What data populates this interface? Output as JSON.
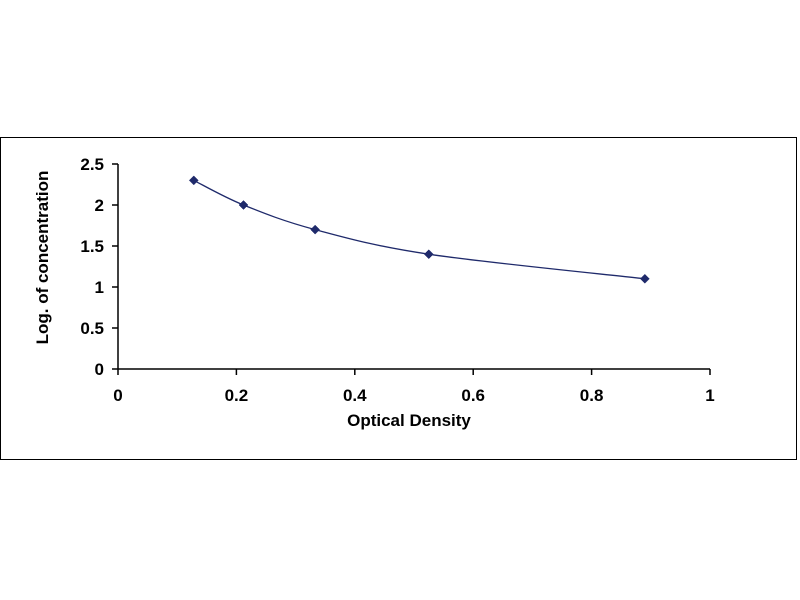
{
  "chart_data": {
    "type": "scatter",
    "title": "",
    "xlabel": "Optical Density",
    "ylabel": "Log. of concentration",
    "xlim": [
      0,
      1
    ],
    "ylim": [
      0,
      2.5
    ],
    "xticks": [
      "0",
      "0.2",
      "0.4",
      "0.6",
      "0.8",
      "1"
    ],
    "xtick_values": [
      0,
      0.2,
      0.4,
      0.6,
      0.8,
      1
    ],
    "yticks": [
      "0",
      "0.5",
      "1",
      "1.5",
      "2",
      "2.5"
    ],
    "ytick_values": [
      0,
      0.5,
      1,
      1.5,
      2,
      2.5
    ],
    "grid": false,
    "series": [
      {
        "x": [
          0.128,
          0.212,
          0.333,
          0.525,
          0.89
        ],
        "y": [
          2.3,
          2.0,
          1.7,
          1.4,
          1.1
        ],
        "marker": "diamond",
        "marker_color": "#1f2a6b",
        "line_color": "#1f2a6b",
        "smooth_fit": true
      }
    ]
  }
}
